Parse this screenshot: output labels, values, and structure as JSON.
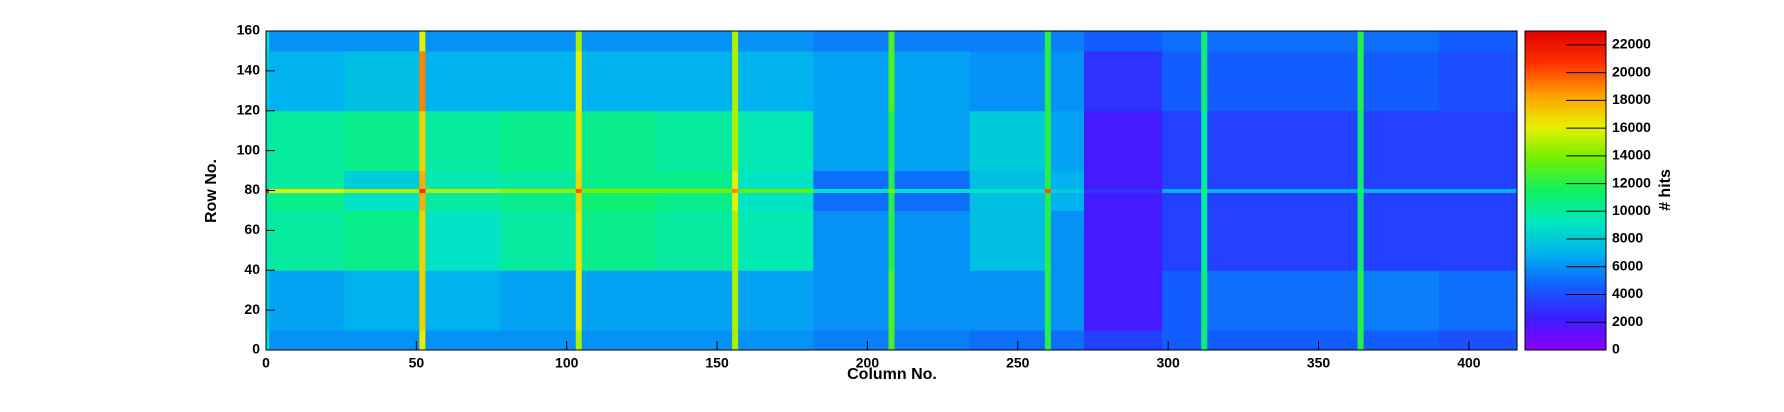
{
  "chart_data": {
    "type": "heatmap",
    "xlabel": "Column No.",
    "ylabel": "Row No.",
    "zlabel": "# hits",
    "xbins": [
      0,
      1,
      26,
      51,
      53,
      78,
      103,
      105,
      130,
      155,
      157,
      182,
      207,
      209,
      234,
      259,
      261,
      272,
      298,
      311,
      313,
      340,
      363,
      365,
      390,
      416
    ],
    "ybins": [
      0,
      10,
      40,
      70,
      79,
      81,
      90,
      120,
      150,
      160
    ],
    "z": [
      [
        9000,
        6000,
        6000,
        16000,
        6000,
        6000,
        15000,
        6000,
        6000,
        15000,
        6000,
        5500,
        13000,
        5500,
        5000,
        12000,
        5000,
        3500,
        4500,
        11000,
        4500,
        4500,
        12000,
        4500,
        4000
      ],
      [
        8000,
        6500,
        7000,
        17000,
        7000,
        6500,
        16000,
        6500,
        6500,
        15000,
        6500,
        6000,
        13000,
        6000,
        6000,
        12000,
        6000,
        2000,
        4500,
        11000,
        5000,
        5000,
        12000,
        5500,
        5000
      ],
      [
        9000,
        10000,
        10500,
        17000,
        9000,
        10000,
        16500,
        10500,
        10000,
        15000,
        9500,
        6000,
        12000,
        6000,
        7500,
        12000,
        6000,
        2000,
        3500,
        10000,
        3500,
        3500,
        11000,
        3500,
        3500
      ],
      [
        9500,
        10500,
        9000,
        18000,
        10000,
        10500,
        17000,
        11000,
        10500,
        16000,
        9000,
        5000,
        12000,
        5000,
        7500,
        12000,
        7000,
        2000,
        3500,
        10000,
        3500,
        3500,
        11000,
        3500,
        3500
      ],
      [
        22000,
        16000,
        15000,
        21000,
        15000,
        14500,
        20000,
        14000,
        14000,
        19000,
        13500,
        9000,
        14000,
        9000,
        9000,
        20000,
        8000,
        3000,
        7000,
        11000,
        7000,
        7000,
        11000,
        7000,
        7000
      ],
      [
        9000,
        10000,
        8000,
        18000,
        9500,
        10000,
        17000,
        10500,
        10500,
        16000,
        9000,
        5000,
        12000,
        5000,
        7500,
        12000,
        7000,
        2000,
        3500,
        10000,
        3500,
        3500,
        11000,
        3500,
        3500
      ],
      [
        9000,
        10000,
        10500,
        17000,
        10000,
        10500,
        16500,
        10500,
        10000,
        15000,
        9500,
        6500,
        12000,
        6500,
        8000,
        12000,
        6500,
        2000,
        3500,
        10000,
        3500,
        3500,
        11000,
        3500,
        3500
      ],
      [
        8000,
        7000,
        7500,
        19000,
        7000,
        7000,
        16000,
        7000,
        7000,
        15000,
        7000,
        6500,
        13000,
        6500,
        6000,
        12000,
        6000,
        3000,
        4500,
        11000,
        4500,
        4500,
        12000,
        4500,
        4000
      ],
      [
        9000,
        6000,
        6000,
        16000,
        6000,
        6000,
        15000,
        6000,
        6000,
        15000,
        6000,
        5500,
        13000,
        5500,
        5500,
        12000,
        5500,
        4500,
        5000,
        11000,
        5000,
        5000,
        12000,
        5000,
        4500
      ]
    ],
    "xlim": [
      0,
      416
    ],
    "ylim": [
      0,
      160
    ],
    "xticks": [
      0,
      50,
      100,
      150,
      200,
      250,
      300,
      350,
      400
    ],
    "yticks": [
      0,
      20,
      40,
      60,
      80,
      100,
      120,
      140,
      160
    ],
    "zlim": [
      0,
      23000
    ],
    "zticks": [
      0,
      2000,
      4000,
      6000,
      8000,
      10000,
      12000,
      14000,
      16000,
      18000,
      20000,
      22000
    ],
    "colormap": [
      "#8a00ff",
      "#3a1eff",
      "#1060ff",
      "#00b0f0",
      "#00e8c0",
      "#10f060",
      "#70f000",
      "#e8f000",
      "#ffa000",
      "#ff3000",
      "#e00000"
    ]
  }
}
